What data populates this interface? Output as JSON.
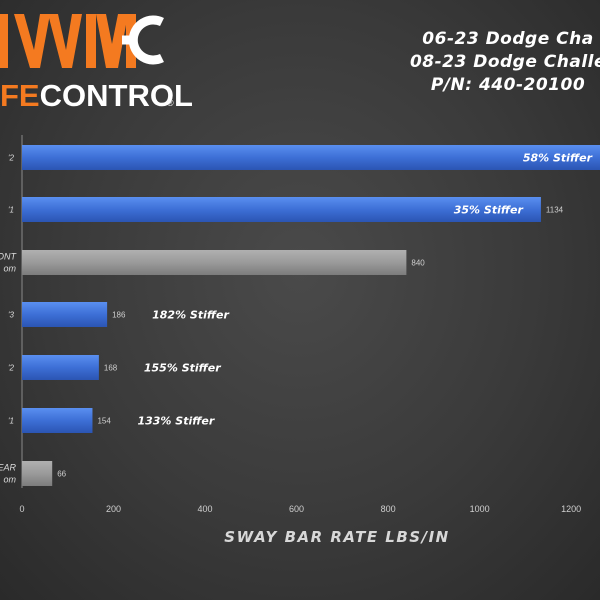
{
  "brand": {
    "logo_mark": "WMMC",
    "logo_text": "FECONTROL",
    "registered": "®",
    "accent_color": "#f47a20"
  },
  "header": {
    "title_lines": [
      "06-23 Dodge Cha",
      "08-23 Dodge Challe",
      "P/N: 440-20100"
    ]
  },
  "chart_data": {
    "type": "bar",
    "orientation": "horizontal",
    "categories": [
      "'2",
      "'1",
      "ONT\nom",
      "'3",
      "'2",
      "'1",
      "EAR\nom"
    ],
    "values": [
      1330,
      1134,
      840,
      186,
      168,
      154,
      66
    ],
    "value_labels": [
      "",
      "1134",
      "840",
      "186",
      "168",
      "154",
      "66"
    ],
    "annotations": [
      "58% Stiffer",
      "35% Stiffer",
      "",
      "182% Stiffer",
      "155% Stiffer",
      "133% Stiffer",
      ""
    ],
    "colors": [
      "#3d6fd6",
      "#3d6fd6",
      "#999999",
      "#3d6fd6",
      "#3d6fd6",
      "#3d6fd6",
      "#999999"
    ],
    "xlim": [
      0,
      1260
    ],
    "xticks": [
      0,
      200,
      400,
      600,
      800,
      1000,
      1200
    ],
    "xlabel": "SWAY BAR RATE LBS/IN",
    "grid": false,
    "legend": "none"
  }
}
